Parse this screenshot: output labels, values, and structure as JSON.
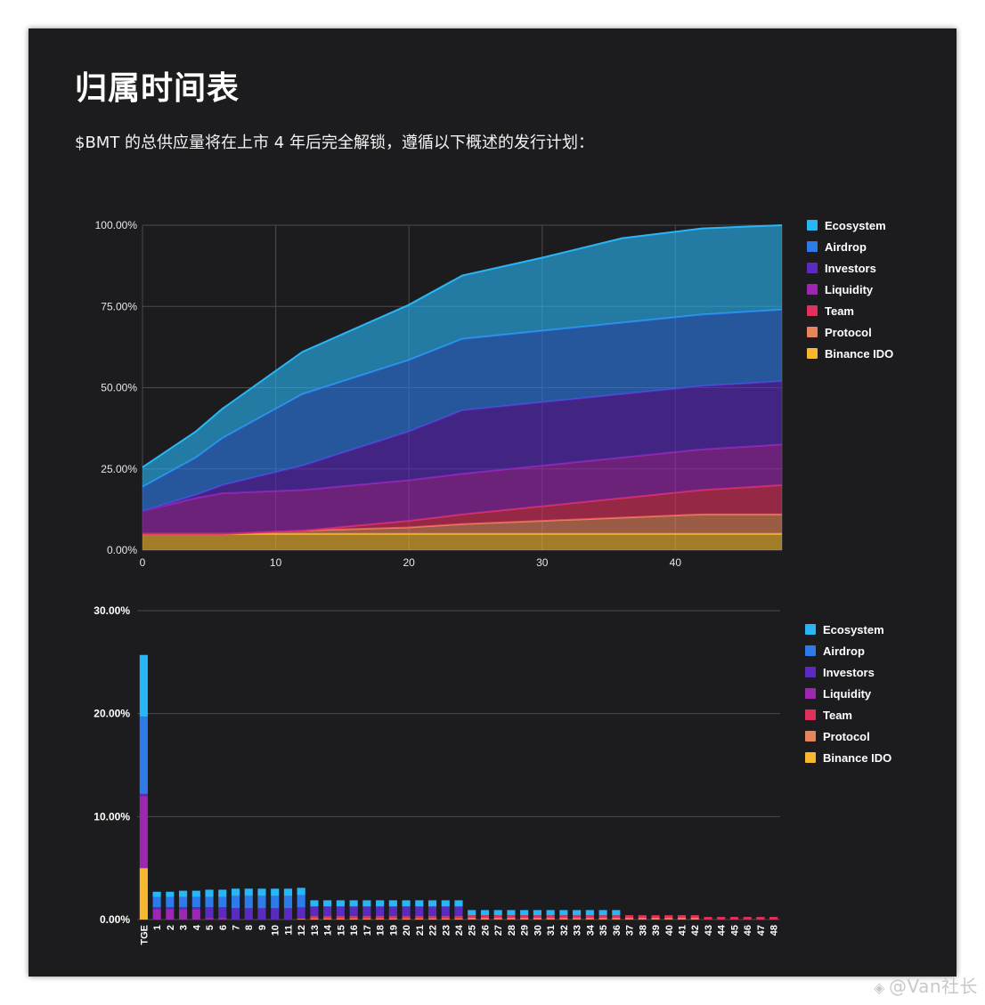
{
  "page": {
    "title": "归属时间表",
    "subtitle": "$BMT 的总供应量将在上市 4 年后完全解锁，遵循以下概述的发行计划：",
    "watermark": "@Van社长"
  },
  "colors": {
    "Ecosystem": "#29b6f6",
    "Airdrop": "#2d7ae8",
    "Investors": "#5b2bc0",
    "Liquidity": "#9c27b0",
    "Team": "#e0315e",
    "Protocol": "#e8845c",
    "Binance IDO": "#f5b82e"
  },
  "chart_data": [
    {
      "type": "area",
      "stacked": true,
      "x": [
        0,
        4,
        6,
        12,
        20,
        24,
        30,
        36,
        42,
        48
      ],
      "xlim": [
        0,
        48
      ],
      "xticks": [
        "0",
        "10",
        "20",
        "30",
        "40"
      ],
      "ylim": [
        0,
        100
      ],
      "yticks": [
        "0.00%",
        "25.00%",
        "50.00%",
        "75.00%",
        "100.00%"
      ],
      "grid": true,
      "legend_position": "right",
      "series": [
        {
          "name": "Binance IDO",
          "values": [
            5,
            5,
            5,
            5,
            5,
            5,
            5,
            5,
            5,
            5
          ]
        },
        {
          "name": "Protocol",
          "values": [
            0,
            0,
            0,
            1,
            2,
            3,
            4,
            5,
            6,
            6
          ]
        },
        {
          "name": "Team",
          "values": [
            0,
            0,
            0,
            0,
            2,
            3,
            4.5,
            6,
            7.5,
            9
          ]
        },
        {
          "name": "Liquidity",
          "values": [
            7,
            11,
            12.5,
            12.5,
            12.5,
            12.5,
            12.5,
            12.5,
            12.5,
            12.5
          ]
        },
        {
          "name": "Investors",
          "values": [
            0,
            1,
            2.5,
            7.5,
            15,
            19.5,
            19.5,
            19.5,
            19.5,
            19.5
          ]
        },
        {
          "name": "Airdrop",
          "values": [
            7.5,
            11.5,
            14.5,
            22,
            22,
            22,
            22,
            22,
            22,
            22
          ]
        },
        {
          "name": "Ecosystem",
          "values": [
            6,
            8,
            9,
            13,
            17,
            19.5,
            22.5,
            26,
            26.5,
            26
          ]
        }
      ]
    },
    {
      "type": "bar",
      "stacked": true,
      "categories": [
        "TGE",
        "1",
        "2",
        "3",
        "4",
        "5",
        "6",
        "7",
        "8",
        "9",
        "10",
        "11",
        "12",
        "13",
        "14",
        "15",
        "16",
        "17",
        "18",
        "19",
        "20",
        "21",
        "22",
        "23",
        "24",
        "25",
        "26",
        "27",
        "28",
        "29",
        "30",
        "31",
        "32",
        "33",
        "34",
        "35",
        "36",
        "37",
        "38",
        "39",
        "40",
        "41",
        "42",
        "43",
        "44",
        "45",
        "46",
        "47",
        "48"
      ],
      "ylim": [
        0,
        30
      ],
      "yticks": [
        "0.00%",
        "10.00%",
        "20.00%",
        "30.00%"
      ],
      "grid": true,
      "legend_position": "right",
      "series": [
        {
          "name": "Binance IDO",
          "values": [
            5,
            0,
            0,
            0,
            0,
            0,
            0,
            0,
            0,
            0,
            0,
            0,
            0,
            0,
            0,
            0,
            0,
            0,
            0,
            0,
            0,
            0,
            0,
            0,
            0,
            0,
            0,
            0,
            0,
            0,
            0,
            0,
            0,
            0,
            0,
            0,
            0,
            0,
            0,
            0,
            0,
            0,
            0,
            0,
            0,
            0,
            0,
            0,
            0
          ]
        },
        {
          "name": "Protocol",
          "values": [
            0,
            0,
            0,
            0,
            0,
            0,
            0,
            0,
            0,
            0,
            0,
            0,
            0.08,
            0.12,
            0.12,
            0.12,
            0.12,
            0.12,
            0.12,
            0.12,
            0.12,
            0.12,
            0.12,
            0.12,
            0.12,
            0.17,
            0.17,
            0.17,
            0.17,
            0.17,
            0.17,
            0.17,
            0.17,
            0.17,
            0.17,
            0.17,
            0.17,
            0.17,
            0.17,
            0.17,
            0.17,
            0.17,
            0.17,
            0,
            0,
            0,
            0,
            0,
            0
          ]
        },
        {
          "name": "Team",
          "values": [
            0,
            0,
            0,
            0,
            0,
            0,
            0,
            0,
            0,
            0,
            0,
            0,
            0,
            0.25,
            0.25,
            0.25,
            0.25,
            0.25,
            0.25,
            0.25,
            0.25,
            0.25,
            0.25,
            0.25,
            0.25,
            0.25,
            0.25,
            0.25,
            0.25,
            0.25,
            0.25,
            0.25,
            0.25,
            0.25,
            0.25,
            0.25,
            0.25,
            0.25,
            0.25,
            0.25,
            0.25,
            0.25,
            0.25,
            0.25,
            0.25,
            0.25,
            0.25,
            0.25,
            0.25
          ]
        },
        {
          "name": "Liquidity",
          "values": [
            7,
            1,
            1,
            1,
            1,
            0.2,
            0.2,
            0,
            0,
            0,
            0,
            0,
            0,
            0,
            0,
            0,
            0,
            0,
            0,
            0,
            0,
            0,
            0,
            0,
            0,
            0,
            0,
            0,
            0,
            0,
            0,
            0,
            0,
            0,
            0,
            0,
            0,
            0,
            0,
            0,
            0,
            0,
            0,
            0,
            0,
            0,
            0,
            0,
            0
          ]
        },
        {
          "name": "Investors",
          "values": [
            0.2,
            0.2,
            0.2,
            0.2,
            0.2,
            1,
            1,
            1.1,
            1.1,
            1.1,
            1.1,
            1.1,
            1.1,
            0.9,
            0.9,
            0.9,
            0.9,
            0.9,
            0.9,
            0.9,
            0.9,
            0.9,
            0.9,
            0.9,
            0.9,
            0,
            0,
            0,
            0,
            0,
            0,
            0,
            0,
            0,
            0,
            0,
            0,
            0,
            0,
            0,
            0,
            0,
            0,
            0,
            0,
            0,
            0,
            0,
            0
          ]
        },
        {
          "name": "Airdrop",
          "values": [
            7.5,
            1,
            1,
            1,
            1,
            1,
            1,
            1.2,
            1.2,
            1.2,
            1.2,
            1.2,
            1.2,
            0,
            0,
            0,
            0,
            0,
            0,
            0,
            0,
            0,
            0,
            0,
            0,
            0,
            0,
            0,
            0,
            0,
            0,
            0,
            0,
            0,
            0,
            0,
            0,
            0,
            0,
            0,
            0,
            0,
            0,
            0,
            0,
            0,
            0,
            0,
            0
          ]
        },
        {
          "name": "Ecosystem",
          "values": [
            6,
            0.5,
            0.5,
            0.6,
            0.6,
            0.7,
            0.7,
            0.7,
            0.7,
            0.7,
            0.7,
            0.7,
            0.7,
            0.6,
            0.6,
            0.6,
            0.6,
            0.6,
            0.6,
            0.6,
            0.6,
            0.6,
            0.6,
            0.6,
            0.6,
            0.5,
            0.5,
            0.5,
            0.5,
            0.5,
            0.5,
            0.5,
            0.5,
            0.5,
            0.5,
            0.5,
            0.5,
            0,
            0,
            0,
            0,
            0,
            0,
            0,
            0,
            0,
            0,
            0,
            0
          ]
        }
      ]
    }
  ]
}
